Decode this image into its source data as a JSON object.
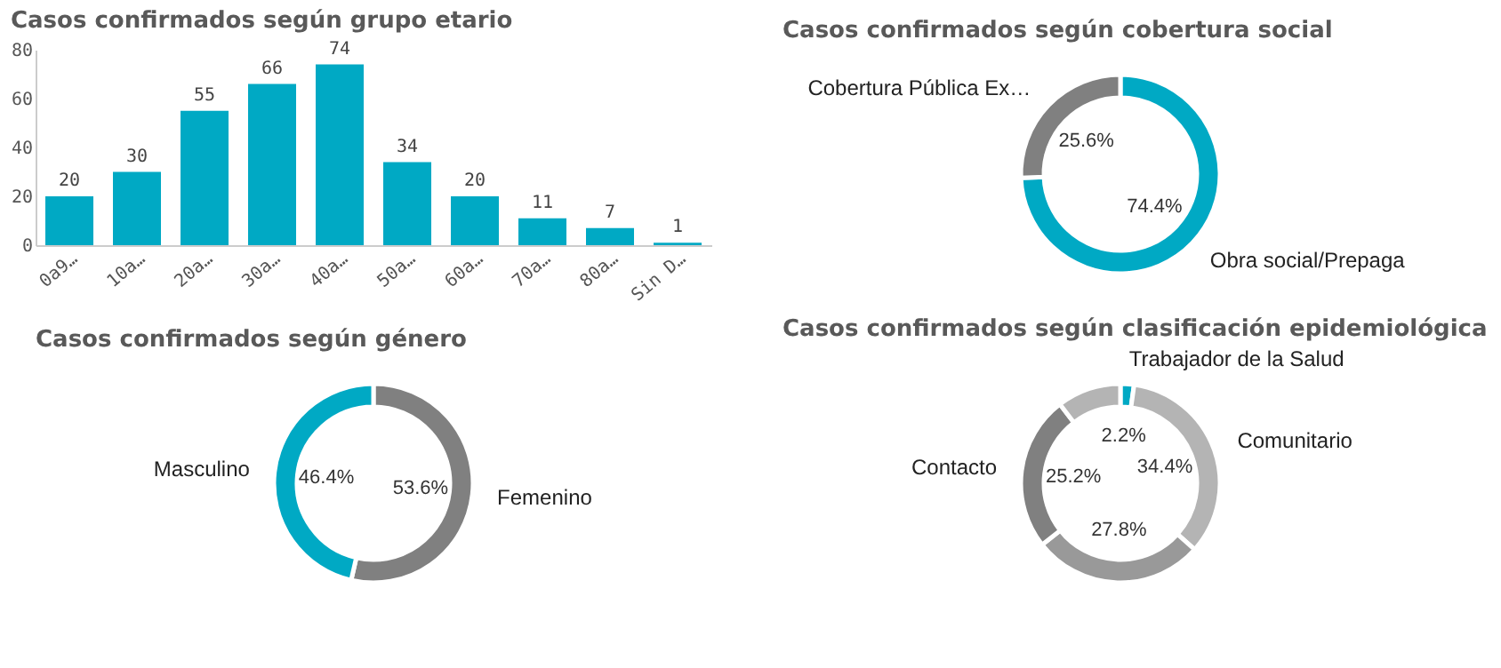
{
  "chart_data": [
    {
      "type": "bar",
      "title": "Casos confirmados según grupo etario",
      "categories": [
        "0a9…",
        "10a…",
        "20a…",
        "30a…",
        "40a…",
        "50a…",
        "60a…",
        "70a…",
        "80a…",
        "Sin D…"
      ],
      "values": [
        20,
        30,
        55,
        66,
        74,
        34,
        20,
        11,
        7,
        1
      ],
      "color": "#00a9c4",
      "ylim": [
        0,
        80
      ],
      "yticks": [
        0,
        20,
        40,
        60,
        80
      ],
      "data_labels": true
    },
    {
      "type": "donut",
      "title": "Casos confirmados según cobertura social",
      "categories": [
        "Obra social/Prepaga",
        "Cobertura Pública Ex…"
      ],
      "values": [
        74.4,
        25.6
      ],
      "colors": [
        "#00a9c4",
        "#808080"
      ],
      "value_labels": [
        "74.4%",
        "25.6%"
      ]
    },
    {
      "type": "donut",
      "title": "Casos confirmados según género",
      "categories": [
        "Femenino",
        "Masculino"
      ],
      "values": [
        53.6,
        46.4
      ],
      "colors": [
        "#808080",
        "#00a9c4"
      ],
      "value_labels": [
        "53.6%",
        "46.4%"
      ]
    },
    {
      "type": "donut",
      "title": "Casos confirmados según clasificación epidemiológica",
      "categories": [
        "Trabajador de la Salud",
        "Comunitario",
        null,
        "Contacto",
        null
      ],
      "values": [
        2.2,
        34.4,
        27.8,
        25.2,
        10.4
      ],
      "colors": [
        "#00a9c4",
        "#b4b4b4",
        "#999999",
        "#808080",
        "#b4b4b4"
      ],
      "value_labels": [
        "2.2%",
        "34.4%",
        "27.8%",
        "25.2%",
        null
      ]
    }
  ]
}
